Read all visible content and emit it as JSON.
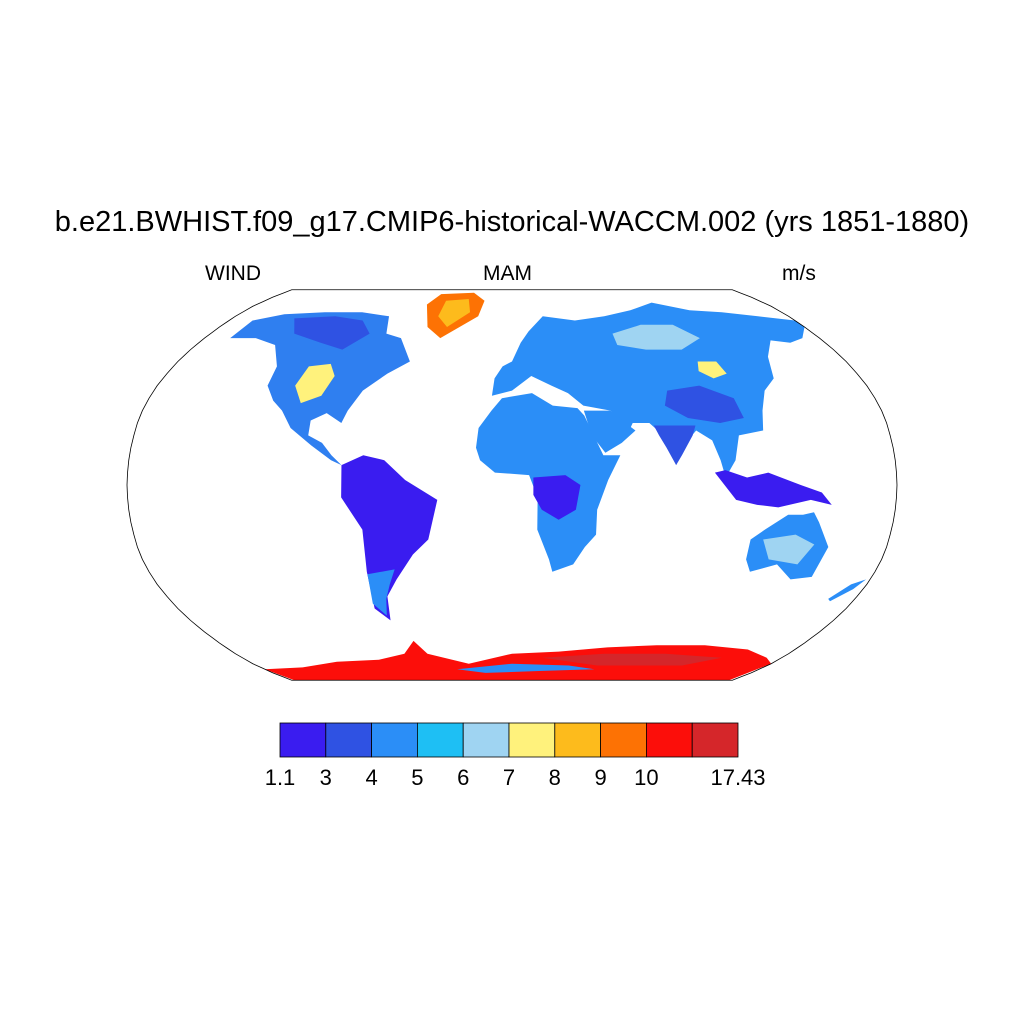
{
  "figure": {
    "title": "b.e21.BWHIST.f09_g17.CMIP6-historical-WACCM.002 (yrs 1851-1880)",
    "left_string": "WIND",
    "center_string": "MAM",
    "right_string": "m/s"
  },
  "colorbar": {
    "labels": [
      "1.1",
      "3",
      "4",
      "5",
      "6",
      "7",
      "8",
      "9",
      "10",
      "17.43"
    ],
    "colors": [
      "#3a1cf0",
      "#2f52e3",
      "#2b8ef7",
      "#1ebff4",
      "#9fd4f2",
      "#fff27c",
      "#fdbb1c",
      "#fd7204",
      "#fc0e0a",
      "#d5262a"
    ]
  },
  "map": {
    "projection": "Robinson",
    "ocean_color": "#ffffff",
    "land_regions": [
      {
        "name": "north-america",
        "color": "#2f7ff0",
        "pts": [
          [
            -165,
            68
          ],
          [
            -150,
            71
          ],
          [
            -125,
            72
          ],
          [
            -100,
            72
          ],
          [
            -80,
            70
          ],
          [
            -75,
            62
          ],
          [
            -65,
            60
          ],
          [
            -55,
            50
          ],
          [
            -65,
            45
          ],
          [
            -75,
            38
          ],
          [
            -80,
            30
          ],
          [
            -82,
            25
          ],
          [
            -90,
            29
          ],
          [
            -97,
            26
          ],
          [
            -97,
            20
          ],
          [
            -90,
            17
          ],
          [
            -85,
            12
          ],
          [
            -80,
            8
          ],
          [
            -85,
            10
          ],
          [
            -95,
            16
          ],
          [
            -106,
            23
          ],
          [
            -112,
            30
          ],
          [
            -118,
            34
          ],
          [
            -124,
            40
          ],
          [
            -125,
            48
          ],
          [
            -135,
            57
          ],
          [
            -150,
            60
          ],
          [
            -165,
            60
          ]
        ]
      },
      {
        "name": "canada-hudson-area",
        "color": "#2f52e3",
        "pts": [
          [
            -140,
            69
          ],
          [
            -115,
            70
          ],
          [
            -95,
            68
          ],
          [
            -85,
            62
          ],
          [
            -95,
            55
          ],
          [
            -110,
            58
          ],
          [
            -130,
            62
          ]
        ]
      },
      {
        "name": "us-great-plains",
        "color": "#fff27c",
        "pts": [
          [
            -108,
            48
          ],
          [
            -97,
            49
          ],
          [
            -92,
            44
          ],
          [
            -95,
            36
          ],
          [
            -104,
            33
          ],
          [
            -110,
            40
          ]
        ]
      },
      {
        "name": "greenland",
        "color": "#fd7204",
        "pts": [
          [
            -55,
            82
          ],
          [
            -30,
            83
          ],
          [
            -20,
            78
          ],
          [
            -22,
            70
          ],
          [
            -42,
            60
          ],
          [
            -52,
            65
          ],
          [
            -60,
            76
          ]
        ]
      },
      {
        "name": "greenland-interior",
        "color": "#fdbb1c",
        "pts": [
          [
            -48,
            78
          ],
          [
            -32,
            79
          ],
          [
            -28,
            72
          ],
          [
            -40,
            65
          ],
          [
            -48,
            70
          ]
        ]
      },
      {
        "name": "south-america",
        "color": "#3a1cf0",
        "pts": [
          [
            -80,
            8
          ],
          [
            -70,
            12
          ],
          [
            -60,
            10
          ],
          [
            -50,
            2
          ],
          [
            -35,
            -6
          ],
          [
            -40,
            -22
          ],
          [
            -48,
            -28
          ],
          [
            -58,
            -38
          ],
          [
            -65,
            -45
          ],
          [
            -68,
            -55
          ],
          [
            -74,
            -50
          ],
          [
            -72,
            -35
          ],
          [
            -71,
            -18
          ],
          [
            -80,
            -5
          ]
        ]
      },
      {
        "name": "south-america-south",
        "color": "#2b8ef7",
        "pts": [
          [
            -58,
            -34
          ],
          [
            -62,
            -40
          ],
          [
            -66,
            -46
          ],
          [
            -69,
            -53
          ],
          [
            -74,
            -48
          ],
          [
            -72,
            -36
          ]
        ]
      },
      {
        "name": "europe-asia",
        "color": "#2b8ef7",
        "pts": [
          [
            -10,
            36
          ],
          [
            -9,
            43
          ],
          [
            -5,
            48
          ],
          [
            0,
            50
          ],
          [
            5,
            58
          ],
          [
            10,
            63
          ],
          [
            20,
            70
          ],
          [
            40,
            68
          ],
          [
            60,
            70
          ],
          [
            80,
            73
          ],
          [
            100,
            77
          ],
          [
            120,
            73
          ],
          [
            140,
            72
          ],
          [
            160,
            70
          ],
          [
            180,
            68
          ],
          [
            180,
            65
          ],
          [
            170,
            60
          ],
          [
            160,
            58
          ],
          [
            150,
            59
          ],
          [
            140,
            52
          ],
          [
            135,
            43
          ],
          [
            127,
            38
          ],
          [
            122,
            30
          ],
          [
            120,
            22
          ],
          [
            108,
            20
          ],
          [
            105,
            10
          ],
          [
            100,
            3
          ],
          [
            98,
            10
          ],
          [
            95,
            18
          ],
          [
            88,
            22
          ],
          [
            80,
            15
          ],
          [
            77,
            8
          ],
          [
            72,
            20
          ],
          [
            66,
            25
          ],
          [
            58,
            25
          ],
          [
            56,
            22
          ],
          [
            50,
            28
          ],
          [
            48,
            30
          ],
          [
            35,
            32
          ],
          [
            28,
            37
          ],
          [
            20,
            40
          ],
          [
            10,
            44
          ],
          [
            0,
            38
          ]
        ]
      },
      {
        "name": "siberia-light",
        "color": "#9fd4f2",
        "pts": [
          [
            60,
            62
          ],
          [
            80,
            66
          ],
          [
            100,
            66
          ],
          [
            110,
            60
          ],
          [
            95,
            55
          ],
          [
            75,
            55
          ],
          [
            60,
            57
          ]
        ]
      },
      {
        "name": "tibet-china",
        "color": "#2f52e3",
        "pts": [
          [
            78,
            38
          ],
          [
            95,
            40
          ],
          [
            110,
            35
          ],
          [
            112,
            27
          ],
          [
            100,
            25
          ],
          [
            85,
            27
          ],
          [
            75,
            32
          ]
        ]
      },
      {
        "name": "mongolia-yellow",
        "color": "#fff27c",
        "pts": [
          [
            100,
            50
          ],
          [
            110,
            50
          ],
          [
            112,
            45
          ],
          [
            104,
            43
          ],
          [
            98,
            46
          ]
        ]
      },
      {
        "name": "africa",
        "color": "#2b8ef7",
        "pts": [
          [
            -17,
            15
          ],
          [
            -16,
            23
          ],
          [
            -10,
            30
          ],
          [
            -5,
            35
          ],
          [
            10,
            37
          ],
          [
            20,
            32
          ],
          [
            32,
            31
          ],
          [
            35,
            28
          ],
          [
            43,
            12
          ],
          [
            51,
            12
          ],
          [
            45,
            2
          ],
          [
            40,
            -10
          ],
          [
            40,
            -20
          ],
          [
            35,
            -25
          ],
          [
            30,
            -32
          ],
          [
            20,
            -35
          ],
          [
            18,
            -30
          ],
          [
            12,
            -18
          ],
          [
            12,
            -5
          ],
          [
            8,
            4
          ],
          [
            -8,
            5
          ],
          [
            -15,
            10
          ]
        ]
      },
      {
        "name": "central-africa",
        "color": "#3a1cf0",
        "pts": [
          [
            10,
            3
          ],
          [
            25,
            4
          ],
          [
            32,
            0
          ],
          [
            30,
            -10
          ],
          [
            22,
            -14
          ],
          [
            14,
            -10
          ],
          [
            10,
            -4
          ]
        ]
      },
      {
        "name": "arabia",
        "color": "#2b8ef7",
        "pts": [
          [
            35,
            30
          ],
          [
            48,
            30
          ],
          [
            56,
            24
          ],
          [
            59,
            22
          ],
          [
            52,
            17
          ],
          [
            44,
            13
          ],
          [
            38,
            20
          ]
        ]
      },
      {
        "name": "india",
        "color": "#2f52e3",
        "pts": [
          [
            68,
            24
          ],
          [
            88,
            24
          ],
          [
            86,
            20
          ],
          [
            80,
            12
          ],
          [
            77,
            8
          ],
          [
            73,
            15
          ],
          [
            70,
            20
          ]
        ]
      },
      {
        "name": "maritime-continent",
        "color": "#3a1cf0",
        "pts": [
          [
            95,
            5
          ],
          [
            105,
            -6
          ],
          [
            115,
            -8
          ],
          [
            125,
            -9
          ],
          [
            140,
            -6
          ],
          [
            150,
            -8
          ],
          [
            145,
            -3
          ],
          [
            135,
            0
          ],
          [
            120,
            5
          ],
          [
            110,
            3
          ],
          [
            100,
            6
          ]
        ]
      },
      {
        "name": "australia",
        "color": "#2b8ef7",
        "pts": [
          [
            114,
            -22
          ],
          [
            120,
            -18
          ],
          [
            130,
            -12
          ],
          [
            137,
            -12
          ],
          [
            142,
            -11
          ],
          [
            145,
            -15
          ],
          [
            152,
            -25
          ],
          [
            150,
            -37
          ],
          [
            140,
            -38
          ],
          [
            130,
            -32
          ],
          [
            118,
            -35
          ],
          [
            114,
            -30
          ]
        ]
      },
      {
        "name": "australia-interior",
        "color": "#9fd4f2",
        "pts": [
          [
            120,
            -22
          ],
          [
            135,
            -20
          ],
          [
            145,
            -24
          ],
          [
            140,
            -32
          ],
          [
            125,
            -30
          ]
        ]
      },
      {
        "name": "new-zealand",
        "color": "#2b8ef7",
        "pts": [
          [
            166,
            -46
          ],
          [
            172,
            -40
          ],
          [
            178,
            -38
          ],
          [
            175,
            -42
          ],
          [
            168,
            -47
          ]
        ]
      },
      {
        "name": "antarctica",
        "color": "#fc0e0a",
        "pts": [
          [
            -180,
            -90
          ],
          [
            -180,
            -78
          ],
          [
            -150,
            -77
          ],
          [
            -120,
            -74
          ],
          [
            -90,
            -73
          ],
          [
            -70,
            -70
          ],
          [
            -60,
            -64
          ],
          [
            -55,
            -70
          ],
          [
            -30,
            -75
          ],
          [
            0,
            -70
          ],
          [
            30,
            -69
          ],
          [
            60,
            -67
          ],
          [
            90,
            -66
          ],
          [
            120,
            -66
          ],
          [
            150,
            -68
          ],
          [
            170,
            -72
          ],
          [
            180,
            -75
          ],
          [
            180,
            -90
          ]
        ]
      },
      {
        "name": "antarctica-inner",
        "color": "#d5262a",
        "pts": [
          [
            20,
            -72
          ],
          [
            60,
            -70
          ],
          [
            100,
            -70
          ],
          [
            140,
            -72
          ],
          [
            120,
            -76
          ],
          [
            60,
            -76
          ]
        ]
      },
      {
        "name": "antarctica-ridge",
        "color": "#2b8ef7",
        "pts": [
          [
            -40,
            -78
          ],
          [
            0,
            -75
          ],
          [
            40,
            -76
          ],
          [
            60,
            -78
          ],
          [
            20,
            -79
          ],
          [
            -20,
            -80
          ]
        ]
      }
    ]
  }
}
